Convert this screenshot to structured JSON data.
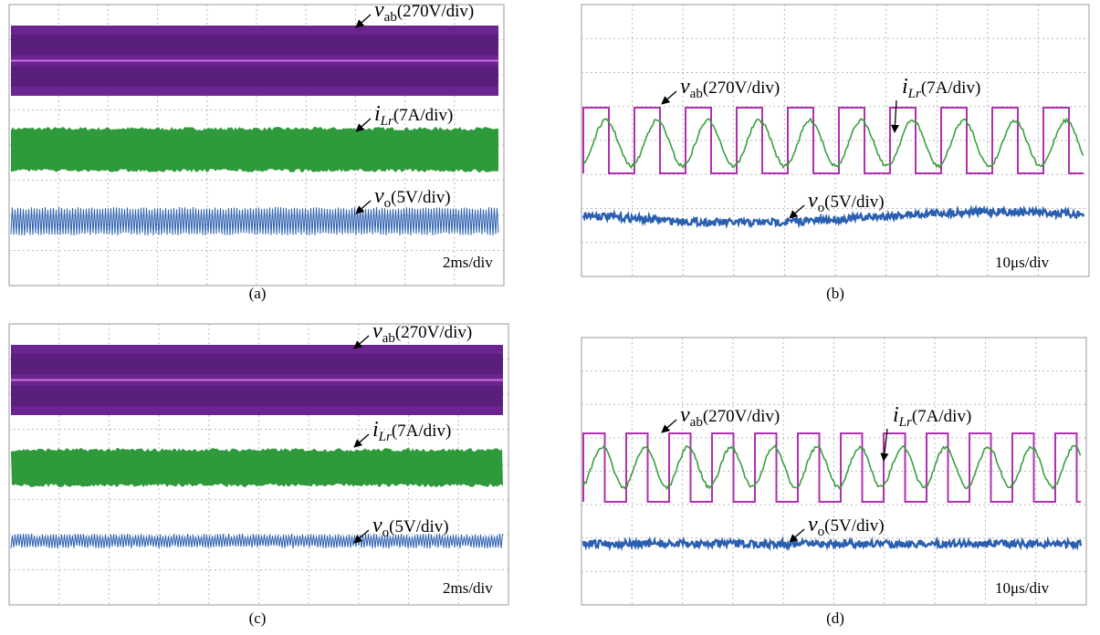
{
  "panels": [
    {
      "caption": "(a)",
      "timebase": "2ms/div",
      "labels": [
        {
          "symbol": "v",
          "subscript": "ab",
          "scale": "(270V/div)"
        },
        {
          "symbol": "i",
          "subscript": "Lr",
          "scale": "(7A/div)"
        },
        {
          "symbol": "v",
          "subscript": "o",
          "scale": "(5V/div)"
        }
      ]
    },
    {
      "caption": "(b)",
      "timebase": "10μs/div",
      "labels": [
        {
          "symbol": "v",
          "subscript": "ab",
          "scale": "(270V/div)"
        },
        {
          "symbol": "i",
          "subscript": "Lr",
          "scale": "(7A/div)"
        },
        {
          "symbol": "v",
          "subscript": "o",
          "scale": "(5V/div)"
        }
      ]
    },
    {
      "caption": "(c)",
      "timebase": "2ms/div",
      "labels": [
        {
          "symbol": "v",
          "subscript": "ab",
          "scale": "(270V/div)"
        },
        {
          "symbol": "i",
          "subscript": "Lr",
          "scale": "(7A/div)"
        },
        {
          "symbol": "v",
          "subscript": "o",
          "scale": "(5V/div)"
        }
      ]
    },
    {
      "caption": "(d)",
      "timebase": "10μs/div",
      "labels": [
        {
          "symbol": "v",
          "subscript": "ab",
          "scale": "(270V/div)"
        },
        {
          "symbol": "i",
          "subscript": "Lr",
          "scale": "(7A/div)"
        },
        {
          "symbol": "v",
          "subscript": "o",
          "scale": "(5V/div)"
        }
      ]
    }
  ]
}
